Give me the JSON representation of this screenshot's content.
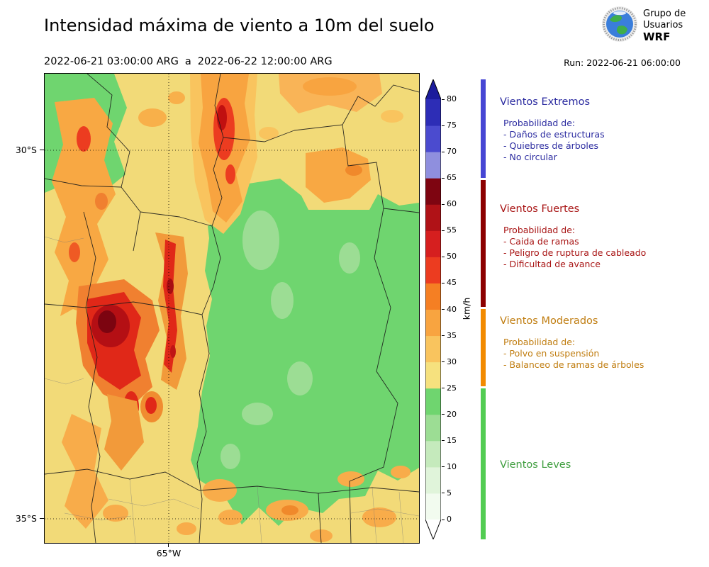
{
  "header": {
    "title": "Intensidad máxima de viento a 10m del suelo",
    "period_start": "2022-06-21 03:00:00 ARG",
    "period_sep": "a",
    "period_end": "2022-06-22 12:00:00 ARG",
    "run": "Run: 2022-06-21 06:00:00"
  },
  "logo": {
    "line1": "Grupo de",
    "line2": "Usuarios",
    "line3": "WRF"
  },
  "map": {
    "y_axis_labels": [
      "30°S",
      "35°S"
    ],
    "x_axis_labels": [
      "65°W"
    ]
  },
  "colorbar": {
    "unit": "km/h",
    "tick_values": [
      "0",
      "5",
      "10",
      "15",
      "20",
      "25",
      "30",
      "35",
      "40",
      "45",
      "50",
      "55",
      "60",
      "65",
      "70",
      "75",
      "80"
    ],
    "segment_colors": [
      "#f2fbef",
      "#e0f4da",
      "#c5eabc",
      "#9cdd94",
      "#6fd56f",
      "#f6e17e",
      "#f9c45e",
      "#f8a440",
      "#f57f23",
      "#ec3c20",
      "#d61f1f",
      "#b01217",
      "#7e0511",
      "#8f8fde",
      "#4b4bcf",
      "#2d2db6"
    ],
    "over_arrow_color": "#1c1c9c",
    "under_arrow_color": "#ffffff"
  },
  "categories": [
    {
      "title": "Vientos Extremos",
      "text_color": "#2b2ba0",
      "bar_color": "#4646d4",
      "lines": [
        "Probabilidad de:",
        "- Daños de estructuras",
        "- Quiebres de árboles",
        "- No circular"
      ]
    },
    {
      "title": "Vientos Fuertes",
      "text_color": "#a81414",
      "bar_color": "#8c0000",
      "lines": [
        "Probabilidad de:",
        "- Caida de ramas",
        "- Peligro de ruptura de cableado",
        "- Dificultad de avance"
      ]
    },
    {
      "title": "Vientos Moderados",
      "text_color": "#c07d10",
      "bar_color": "#f28a00",
      "lines": [
        "Probabilidad de:",
        "- Polvo en suspensión",
        "- Balanceo de ramas de árboles"
      ]
    },
    {
      "title": "Vientos Leves",
      "text_color": "#3f9e3f",
      "bar_color": "#52cc52",
      "lines": []
    }
  ]
}
